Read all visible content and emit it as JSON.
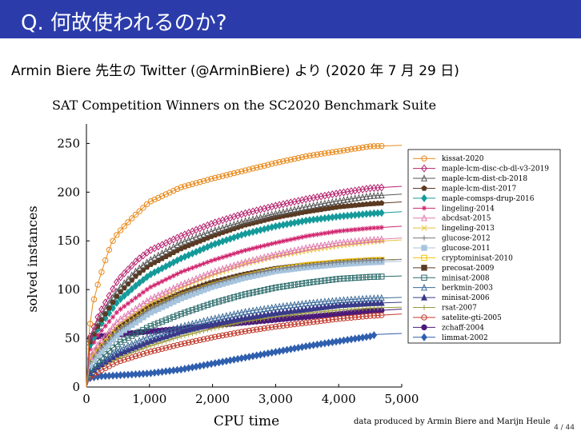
{
  "slide": {
    "title": "Q. 何故使われるのか?",
    "subtitle": "Armin Biere 先生の Twitter (@ArminBiere) より (2020 年 7 月 29 日)",
    "credit": "data produced by Armin Biere and Marijn Heule",
    "page_number": "4 / 44",
    "header_color": "#2b3caa"
  },
  "chart_data": {
    "type": "line",
    "title": "SAT Competition Winners on the SC2020 Benchmark Suite",
    "xlabel": "CPU time",
    "ylabel": "solved instances",
    "xlim": [
      0,
      5000
    ],
    "ylim": [
      0,
      270
    ],
    "xticks": [
      "0",
      "1,000",
      "2,000",
      "3,000",
      "4,000",
      "5,000"
    ],
    "yticks": [
      "0",
      "50",
      "100",
      "150",
      "200",
      "250"
    ],
    "legend_position": "right",
    "series": [
      {
        "name": "kissat-2020",
        "color": "#e8891a",
        "marker": "circle-open",
        "points": [
          [
            0,
            0
          ],
          [
            50,
            60
          ],
          [
            100,
            85
          ],
          [
            200,
            110
          ],
          [
            300,
            130
          ],
          [
            400,
            148
          ],
          [
            500,
            158
          ],
          [
            700,
            172
          ],
          [
            1000,
            190
          ],
          [
            1500,
            205
          ],
          [
            2000,
            214
          ],
          [
            2500,
            222
          ],
          [
            3000,
            230
          ],
          [
            3500,
            237
          ],
          [
            4000,
            242
          ],
          [
            4500,
            247
          ],
          [
            5000,
            248
          ]
        ]
      },
      {
        "name": "maple-lcm-disc-cb-dl-v3-2019",
        "color": "#b5236e",
        "marker": "diamond-open",
        "points": [
          [
            0,
            0
          ],
          [
            50,
            50
          ],
          [
            200,
            75
          ],
          [
            500,
            110
          ],
          [
            800,
            130
          ],
          [
            1000,
            140
          ],
          [
            1500,
            155
          ],
          [
            2000,
            168
          ],
          [
            2500,
            178
          ],
          [
            3000,
            186
          ],
          [
            3500,
            193
          ],
          [
            4000,
            199
          ],
          [
            4500,
            204
          ],
          [
            5000,
            206
          ]
        ]
      },
      {
        "name": "maple-lcm-dist-cb-2018",
        "color": "#555555",
        "marker": "triangle-open",
        "points": [
          [
            0,
            0
          ],
          [
            50,
            48
          ],
          [
            200,
            70
          ],
          [
            500,
            100
          ],
          [
            800,
            120
          ],
          [
            1000,
            130
          ],
          [
            1500,
            148
          ],
          [
            2000,
            160
          ],
          [
            2500,
            170
          ],
          [
            3000,
            178
          ],
          [
            3500,
            185
          ],
          [
            4000,
            191
          ],
          [
            4500,
            196
          ],
          [
            5000,
            198
          ]
        ]
      },
      {
        "name": "maple-lcm-dist-2017",
        "color": "#5a3a22",
        "marker": "pentagon",
        "points": [
          [
            0,
            0
          ],
          [
            50,
            45
          ],
          [
            200,
            65
          ],
          [
            500,
            95
          ],
          [
            800,
            115
          ],
          [
            1000,
            125
          ],
          [
            1500,
            142
          ],
          [
            2000,
            155
          ],
          [
            2500,
            166
          ],
          [
            3000,
            174
          ],
          [
            3500,
            180
          ],
          [
            4000,
            185
          ],
          [
            4500,
            188
          ],
          [
            5000,
            190
          ]
        ]
      },
      {
        "name": "maple-comsps-drup-2016",
        "color": "#159a9a",
        "marker": "diamond",
        "points": [
          [
            0,
            0
          ],
          [
            50,
            42
          ],
          [
            200,
            62
          ],
          [
            500,
            88
          ],
          [
            800,
            105
          ],
          [
            1000,
            115
          ],
          [
            1500,
            132
          ],
          [
            2000,
            146
          ],
          [
            2500,
            157
          ],
          [
            3000,
            165
          ],
          [
            3500,
            171
          ],
          [
            4000,
            175
          ],
          [
            4500,
            178
          ],
          [
            5000,
            180
          ]
        ]
      },
      {
        "name": "lingeling-2014",
        "color": "#d0246e",
        "marker": "star",
        "points": [
          [
            0,
            0
          ],
          [
            50,
            38
          ],
          [
            200,
            55
          ],
          [
            500,
            78
          ],
          [
            1000,
            102
          ],
          [
            1500,
            118
          ],
          [
            2000,
            130
          ],
          [
            2500,
            140
          ],
          [
            3000,
            148
          ],
          [
            3500,
            155
          ],
          [
            4000,
            160
          ],
          [
            4500,
            163
          ],
          [
            5000,
            165
          ]
        ]
      },
      {
        "name": "abcdsat-2015",
        "color": "#e07ab0",
        "marker": "triangle-open",
        "points": [
          [
            0,
            0
          ],
          [
            50,
            30
          ],
          [
            200,
            45
          ],
          [
            500,
            68
          ],
          [
            1000,
            90
          ],
          [
            1500,
            105
          ],
          [
            2000,
            118
          ],
          [
            2500,
            128
          ],
          [
            3000,
            136
          ],
          [
            3500,
            143
          ],
          [
            4000,
            148
          ],
          [
            4500,
            151
          ],
          [
            5000,
            153
          ]
        ]
      },
      {
        "name": "lingeling-2013",
        "color": "#e8c23a",
        "marker": "x",
        "points": [
          [
            0,
            0
          ],
          [
            50,
            28
          ],
          [
            200,
            42
          ],
          [
            500,
            64
          ],
          [
            1000,
            86
          ],
          [
            1500,
            102
          ],
          [
            2000,
            115
          ],
          [
            2500,
            126
          ],
          [
            3000,
            134
          ],
          [
            3500,
            140
          ],
          [
            4000,
            145
          ],
          [
            4500,
            149
          ],
          [
            5000,
            151
          ]
        ]
      },
      {
        "name": "glucose-2012",
        "color": "#7a7a7a",
        "marker": "plus",
        "points": [
          [
            0,
            0
          ],
          [
            50,
            25
          ],
          [
            200,
            38
          ],
          [
            500,
            58
          ],
          [
            1000,
            80
          ],
          [
            1500,
            95
          ],
          [
            2000,
            106
          ],
          [
            2500,
            115
          ],
          [
            3000,
            121
          ],
          [
            3500,
            125
          ],
          [
            4000,
            128
          ],
          [
            4500,
            130
          ],
          [
            5000,
            131
          ]
        ]
      },
      {
        "name": "glucose-2011",
        "color": "#a7c4de",
        "marker": "square",
        "points": [
          [
            0,
            0
          ],
          [
            50,
            22
          ],
          [
            200,
            34
          ],
          [
            500,
            54
          ],
          [
            1000,
            76
          ],
          [
            1500,
            91
          ],
          [
            2000,
            103
          ],
          [
            2500,
            112
          ],
          [
            3000,
            119
          ],
          [
            3500,
            123
          ],
          [
            4000,
            126
          ],
          [
            4500,
            128
          ],
          [
            5000,
            129
          ]
        ]
      },
      {
        "name": "cryptominisat-2010",
        "color": "#f2c200",
        "marker": "square-open",
        "points": [
          [
            0,
            0
          ],
          [
            50,
            24
          ],
          [
            200,
            36
          ],
          [
            500,
            56
          ],
          [
            1000,
            78
          ],
          [
            1500,
            93
          ],
          [
            2000,
            104
          ],
          [
            2500,
            113
          ],
          [
            3000,
            120
          ],
          [
            3500,
            125
          ],
          [
            4000,
            128
          ],
          [
            4500,
            130
          ],
          [
            5000,
            131
          ]
        ]
      },
      {
        "name": "precosat-2009",
        "color": "#5a3a22",
        "marker": "square",
        "points": [
          [
            0,
            0
          ],
          [
            50,
            26
          ],
          [
            200,
            40
          ],
          [
            500,
            60
          ],
          [
            1000,
            82
          ],
          [
            1500,
            96
          ],
          [
            2000,
            107
          ],
          [
            2500,
            115
          ],
          [
            3000,
            121
          ],
          [
            3500,
            125
          ],
          [
            4000,
            128
          ],
          [
            4500,
            130
          ],
          [
            5000,
            131
          ]
        ]
      },
      {
        "name": "minisat-2008",
        "color": "#2a6a6a",
        "marker": "square-open",
        "points": [
          [
            0,
            0
          ],
          [
            50,
            18
          ],
          [
            200,
            28
          ],
          [
            500,
            45
          ],
          [
            1000,
            62
          ],
          [
            1500,
            75
          ],
          [
            2000,
            86
          ],
          [
            2500,
            95
          ],
          [
            3000,
            102
          ],
          [
            3500,
            107
          ],
          [
            4000,
            111
          ],
          [
            4500,
            113
          ],
          [
            5000,
            114
          ]
        ]
      },
      {
        "name": "berkmin-2003",
        "color": "#3a6a9a",
        "marker": "triangle-open",
        "points": [
          [
            0,
            0
          ],
          [
            50,
            15
          ],
          [
            200,
            24
          ],
          [
            500,
            38
          ],
          [
            1000,
            52
          ],
          [
            1500,
            62
          ],
          [
            2000,
            70
          ],
          [
            2500,
            77
          ],
          [
            3000,
            82
          ],
          [
            3500,
            86
          ],
          [
            4000,
            89
          ],
          [
            4500,
            91
          ],
          [
            5000,
            92
          ]
        ]
      },
      {
        "name": "minisat-2006",
        "color": "#3a3a8a",
        "marker": "triangle",
        "points": [
          [
            0,
            0
          ],
          [
            50,
            14
          ],
          [
            200,
            22
          ],
          [
            500,
            34
          ],
          [
            1000,
            47
          ],
          [
            1500,
            57
          ],
          [
            2000,
            65
          ],
          [
            2500,
            71
          ],
          [
            3000,
            76
          ],
          [
            3500,
            80
          ],
          [
            4000,
            84
          ],
          [
            4500,
            86
          ],
          [
            5000,
            87
          ]
        ]
      },
      {
        "name": "rsat-2007",
        "color": "#9a9a3a",
        "marker": "plus",
        "points": [
          [
            0,
            0
          ],
          [
            50,
            12
          ],
          [
            200,
            20
          ],
          [
            500,
            30
          ],
          [
            1000,
            42
          ],
          [
            1500,
            52
          ],
          [
            2000,
            60
          ],
          [
            2500,
            67
          ],
          [
            3000,
            72
          ],
          [
            3500,
            76
          ],
          [
            4000,
            79
          ],
          [
            4500,
            81
          ],
          [
            5000,
            82
          ]
        ]
      },
      {
        "name": "satelite-gti-2005",
        "color": "#c0392b",
        "marker": "circle-open",
        "points": [
          [
            0,
            0
          ],
          [
            50,
            10
          ],
          [
            200,
            16
          ],
          [
            500,
            26
          ],
          [
            1000,
            36
          ],
          [
            1500,
            44
          ],
          [
            2000,
            51
          ],
          [
            2500,
            57
          ],
          [
            3000,
            62
          ],
          [
            3500,
            66
          ],
          [
            4000,
            70
          ],
          [
            4500,
            73
          ],
          [
            5000,
            75
          ]
        ]
      },
      {
        "name": "zchaff-2004",
        "color": "#4b1a7a",
        "marker": "circle",
        "points": [
          [
            0,
            0
          ],
          [
            40,
            40
          ],
          [
            60,
            50
          ],
          [
            200,
            52
          ],
          [
            500,
            54
          ],
          [
            1000,
            57
          ],
          [
            1500,
            60
          ],
          [
            2000,
            63
          ],
          [
            2500,
            66
          ],
          [
            3000,
            69
          ],
          [
            3500,
            72
          ],
          [
            4000,
            75
          ],
          [
            4500,
            78
          ],
          [
            5000,
            80
          ]
        ]
      },
      {
        "name": "limmat-2002",
        "color": "#2f5fae",
        "marker": "diamond",
        "points": [
          [
            0,
            0
          ],
          [
            50,
            9
          ],
          [
            200,
            11
          ],
          [
            500,
            12
          ],
          [
            1000,
            14
          ],
          [
            1500,
            18
          ],
          [
            2000,
            24
          ],
          [
            2500,
            30
          ],
          [
            3000,
            36
          ],
          [
            3500,
            42
          ],
          [
            4000,
            47
          ],
          [
            4500,
            52
          ],
          [
            4600,
            54
          ],
          [
            5000,
            55
          ]
        ]
      }
    ]
  }
}
